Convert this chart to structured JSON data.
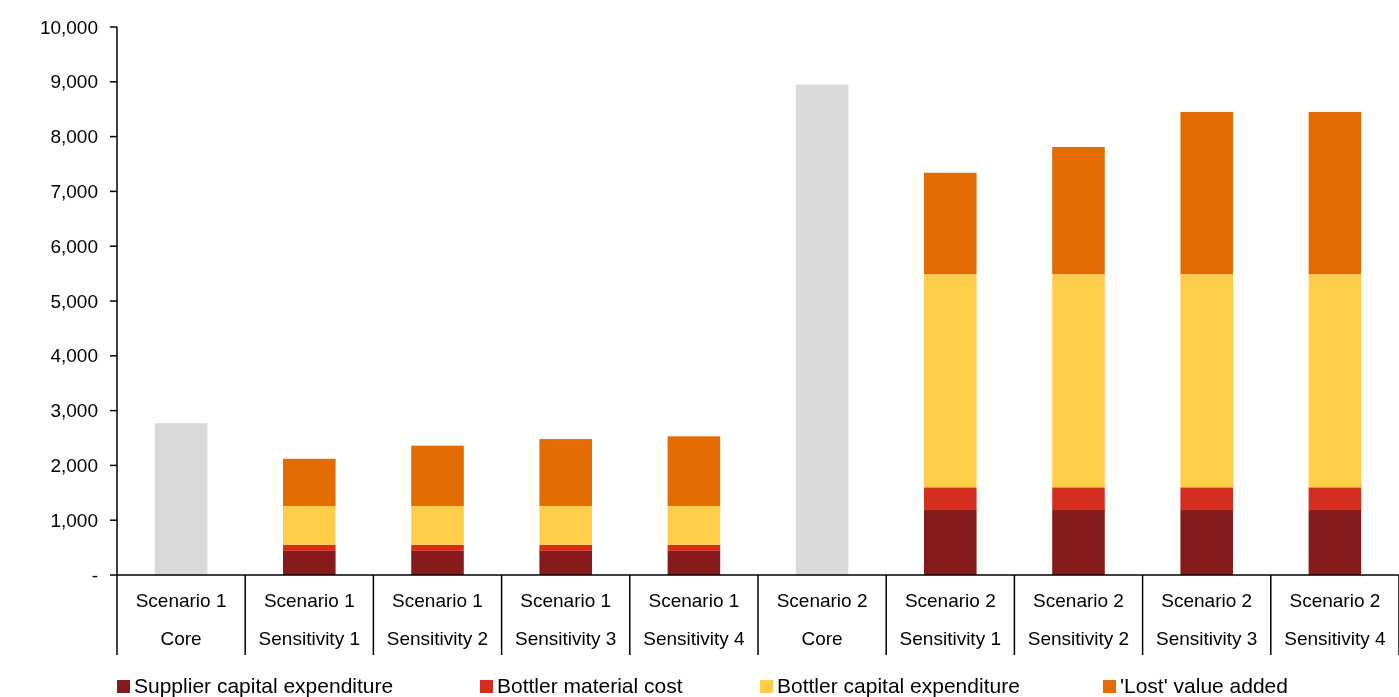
{
  "chart_data": {
    "type": "bar",
    "stacked": true,
    "legend": "bottom",
    "grid": false,
    "categories": [
      "Scenario 1\nCore",
      "Scenario 1\nSensitivity 1",
      "Scenario 1\nSensitivity 2",
      "Scenario 1\nSensitivity 3",
      "Scenario 1\nSensitivity 4",
      "Scenario 2\nCore",
      "Scenario 2\nSensitivity 1",
      "Scenario 2\nSensitivity 2",
      "Scenario 2\nSensitivity 3",
      "Scenario 2\nSensitivity 4"
    ],
    "series": [
      {
        "color": "#d9d9d9",
        "values": [
          2770,
          null,
          null,
          null,
          null,
          8950,
          null,
          null,
          null,
          null
        ]
      },
      {
        "name": "Supplier capital expenditure",
        "color": "#841a1a",
        "values": [
          null,
          440,
          440,
          440,
          440,
          null,
          1200,
          1200,
          1200,
          1200
        ]
      },
      {
        "name": "Bottler material cost",
        "color": "#d62e1e",
        "values": [
          null,
          110,
          110,
          110,
          110,
          null,
          400,
          400,
          400,
          400
        ]
      },
      {
        "name": "Bottler capital expenditure",
        "color": "#ffcd4a",
        "values": [
          null,
          710,
          710,
          710,
          710,
          null,
          3890,
          3890,
          3890,
          3890
        ]
      },
      {
        "name": "'Lost' value added",
        "color": "#e26b02",
        "values": [
          null,
          860,
          1100,
          1220,
          1270,
          null,
          1850,
          2320,
          2960,
          2960
        ]
      }
    ],
    "ylim": [
      0,
      10000
    ],
    "yticks": [
      {
        "value": 0,
        "label": "-"
      },
      {
        "value": 1000,
        "label": "1,000"
      },
      {
        "value": 2000,
        "label": "2,000"
      },
      {
        "value": 3000,
        "label": "3,000"
      },
      {
        "value": 4000,
        "label": "4,000"
      },
      {
        "value": 5000,
        "label": "5,000"
      },
      {
        "value": 6000,
        "label": "6,000"
      },
      {
        "value": 7000,
        "label": "7,000"
      },
      {
        "value": 8000,
        "label": "8,000"
      },
      {
        "value": 9000,
        "label": "9,000"
      },
      {
        "value": 10000,
        "label": "10,000"
      }
    ]
  }
}
